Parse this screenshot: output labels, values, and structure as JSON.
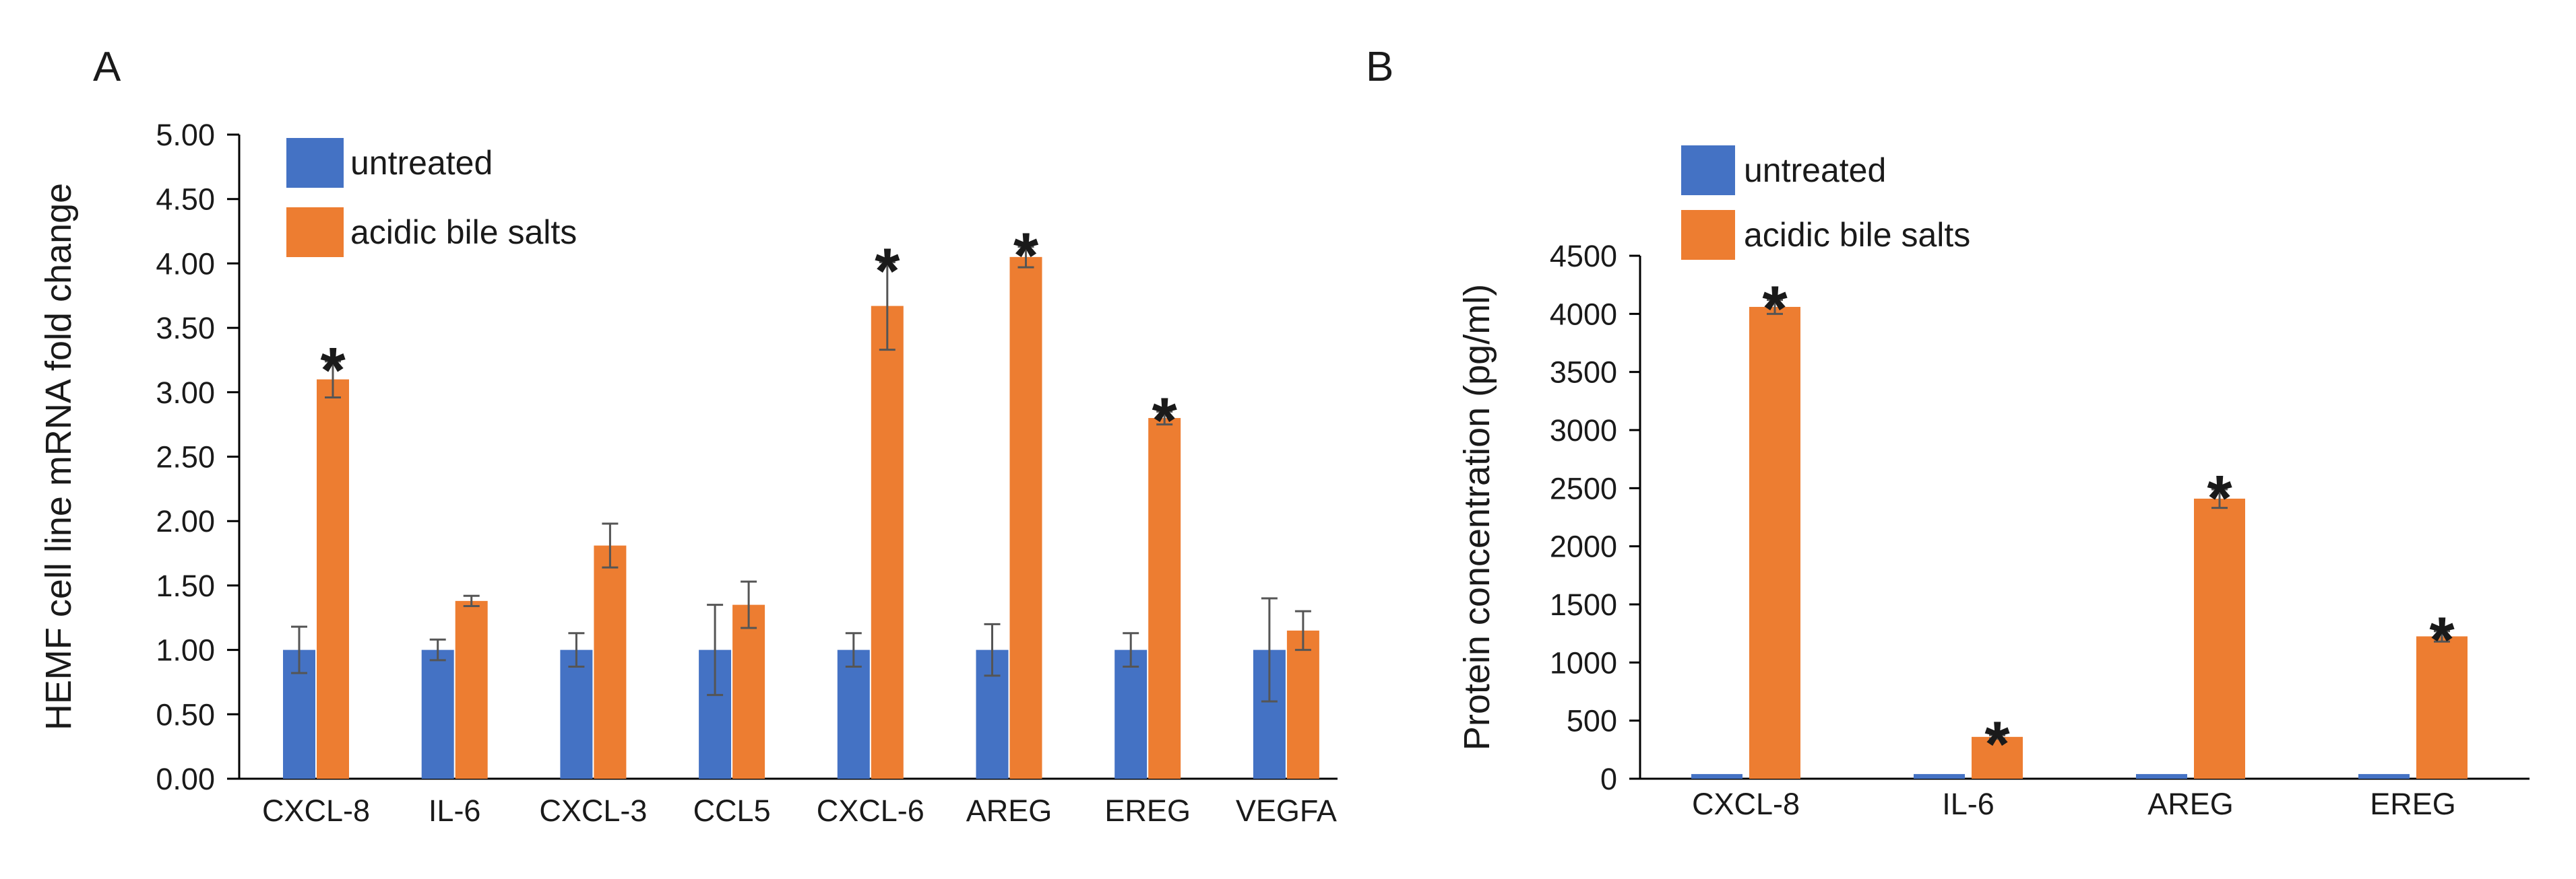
{
  "colors": {
    "untreated": "#4472C4",
    "acidic": "#ED7D31"
  },
  "chart_data": [
    {
      "panel": "A",
      "type": "bar",
      "title": "",
      "xlabel": "",
      "ylabel": "HEMF cell line mRNA fold change",
      "ylim": [
        0,
        5
      ],
      "yticks": [
        "0.00",
        "0.50",
        "1.00",
        "1.50",
        "2.00",
        "2.50",
        "3.00",
        "3.50",
        "4.00",
        "4.50",
        "5.00"
      ],
      "tick_values": [
        0,
        0.5,
        1,
        1.5,
        2,
        2.5,
        3,
        3.5,
        4,
        4.5,
        5
      ],
      "categories": [
        "CXCL-8",
        "IL-6",
        "CXCL-3",
        "CCL5",
        "CXCL-6",
        "AREG",
        "EREG",
        "VEGFA"
      ],
      "legend": {
        "position": "top-left"
      },
      "series": [
        {
          "name": "untreated",
          "values": [
            1,
            1,
            1,
            1,
            1,
            1,
            1,
            1
          ],
          "errors": [
            0.18,
            0.08,
            0.13,
            0.35,
            0.13,
            0.2,
            0.13,
            0.4
          ]
        },
        {
          "name": "acidic bile salts",
          "values": [
            3.1,
            1.38,
            1.81,
            1.35,
            3.67,
            4.05,
            2.8,
            1.15
          ],
          "errors": [
            0.14,
            0.04,
            0.17,
            0.18,
            0.34,
            0.08,
            0.05,
            0.15
          ]
        }
      ],
      "significance": [
        "*",
        "",
        "",
        "",
        "*",
        "*",
        "*",
        ""
      ]
    },
    {
      "panel": "B",
      "type": "bar",
      "title": "",
      "xlabel": "",
      "ylabel": "Protein concentration (pg/ml)",
      "ylim": [
        0,
        4500
      ],
      "yticks": [
        "0",
        "500",
        "1000",
        "1500",
        "2000",
        "2500",
        "3000",
        "3500",
        "4000",
        "4500"
      ],
      "tick_values": [
        0,
        500,
        1000,
        1500,
        2000,
        2500,
        3000,
        3500,
        4000,
        4500
      ],
      "categories": [
        "CXCL-8",
        "IL-6",
        "AREG",
        "EREG"
      ],
      "legend": {
        "position": "top-left"
      },
      "series": [
        {
          "name": "untreated",
          "values": [
            40,
            40,
            40,
            40
          ],
          "errors": [
            0,
            0,
            0,
            0
          ]
        },
        {
          "name": "acidic bile salts",
          "values": [
            4060,
            360,
            2410,
            1225
          ],
          "errors": [
            60,
            15,
            80,
            45
          ]
        }
      ],
      "significance": [
        "*",
        "*",
        "*",
        "*"
      ]
    }
  ]
}
